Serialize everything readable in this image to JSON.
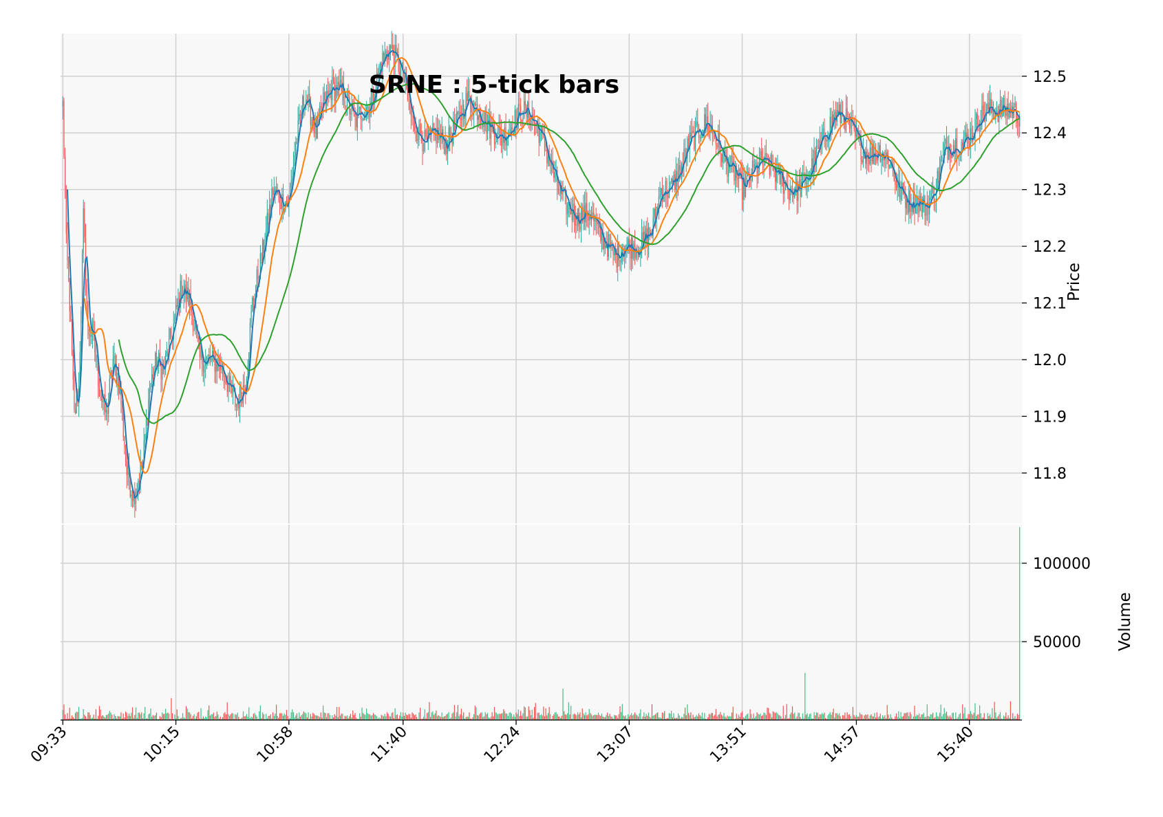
{
  "chart_data": {
    "type": "candlestick",
    "title": "SRNE : 5-tick bars",
    "price_panel": {
      "ylabel": "Price",
      "ylim": [
        11.71,
        12.575
      ],
      "yticks": [
        11.8,
        11.9,
        12.0,
        12.1,
        12.2,
        12.3,
        12.4,
        12.5
      ],
      "ytick_labels": [
        "11.8",
        "11.9",
        "12.0",
        "12.1",
        "12.2",
        "12.3",
        "12.4",
        "12.5"
      ]
    },
    "volume_panel": {
      "ylabel": "Volume",
      "ylim": [
        0,
        125000
      ],
      "yticks": [
        50000,
        100000
      ],
      "ytick_labels": [
        "50000",
        "100000"
      ]
    },
    "x_range": [
      -2,
      840
    ],
    "xtick_positions": [
      0,
      99,
      198,
      298,
      397,
      496,
      595,
      695,
      794
    ],
    "xtick_labels": [
      "09:33",
      "10:15",
      "10:58",
      "11:40",
      "12:24",
      "13:07",
      "13:51",
      "14:57",
      "15:40"
    ],
    "price_path": [
      [
        0,
        12.45
      ],
      [
        3,
        12.2
      ],
      [
        6,
        12.1
      ],
      [
        10,
        11.9
      ],
      [
        14,
        11.95
      ],
      [
        18,
        12.25
      ],
      [
        22,
        12.05
      ],
      [
        26,
        12.05
      ],
      [
        32,
        11.95
      ],
      [
        38,
        11.9
      ],
      [
        44,
        12.0
      ],
      [
        50,
        11.95
      ],
      [
        56,
        11.8
      ],
      [
        62,
        11.76
      ],
      [
        70,
        11.82
      ],
      [
        76,
        11.95
      ],
      [
        82,
        12.0
      ],
      [
        88,
        11.98
      ],
      [
        96,
        12.05
      ],
      [
        104,
        12.13
      ],
      [
        112,
        12.1
      ],
      [
        120,
        12.0
      ],
      [
        128,
        12.0
      ],
      [
        138,
        11.99
      ],
      [
        146,
        11.95
      ],
      [
        152,
        11.92
      ],
      [
        160,
        11.96
      ],
      [
        166,
        12.1
      ],
      [
        176,
        12.2
      ],
      [
        184,
        12.3
      ],
      [
        192,
        12.28
      ],
      [
        198,
        12.28
      ],
      [
        204,
        12.38
      ],
      [
        212,
        12.47
      ],
      [
        222,
        12.4
      ],
      [
        228,
        12.45
      ],
      [
        236,
        12.48
      ],
      [
        246,
        12.47
      ],
      [
        256,
        12.42
      ],
      [
        262,
        12.44
      ],
      [
        270,
        12.45
      ],
      [
        278,
        12.52
      ],
      [
        286,
        12.55
      ],
      [
        292,
        12.53
      ],
      [
        298,
        12.5
      ],
      [
        306,
        12.42
      ],
      [
        312,
        12.4
      ],
      [
        318,
        12.38
      ],
      [
        326,
        12.4
      ],
      [
        336,
        12.38
      ],
      [
        346,
        12.42
      ],
      [
        354,
        12.46
      ],
      [
        364,
        12.44
      ],
      [
        374,
        12.41
      ],
      [
        384,
        12.39
      ],
      [
        392,
        12.41
      ],
      [
        402,
        12.44
      ],
      [
        410,
        12.43
      ],
      [
        418,
        12.4
      ],
      [
        426,
        12.35
      ],
      [
        434,
        12.3
      ],
      [
        442,
        12.27
      ],
      [
        452,
        12.25
      ],
      [
        462,
        12.26
      ],
      [
        470,
        12.22
      ],
      [
        478,
        12.2
      ],
      [
        484,
        12.18
      ],
      [
        490,
        12.2
      ],
      [
        498,
        12.2
      ],
      [
        506,
        12.2
      ],
      [
        516,
        12.23
      ],
      [
        524,
        12.3
      ],
      [
        532,
        12.3
      ],
      [
        540,
        12.33
      ],
      [
        548,
        12.38
      ],
      [
        556,
        12.4
      ],
      [
        564,
        12.42
      ],
      [
        572,
        12.39
      ],
      [
        580,
        12.35
      ],
      [
        588,
        12.33
      ],
      [
        596,
        12.3
      ],
      [
        604,
        12.33
      ],
      [
        612,
        12.35
      ],
      [
        620,
        12.34
      ],
      [
        628,
        12.32
      ],
      [
        636,
        12.3
      ],
      [
        644,
        12.3
      ],
      [
        652,
        12.32
      ],
      [
        660,
        12.36
      ],
      [
        668,
        12.4
      ],
      [
        676,
        12.43
      ],
      [
        684,
        12.43
      ],
      [
        692,
        12.4
      ],
      [
        700,
        12.37
      ],
      [
        708,
        12.36
      ],
      [
        716,
        12.37
      ],
      [
        724,
        12.35
      ],
      [
        732,
        12.3
      ],
      [
        740,
        12.28
      ],
      [
        748,
        12.28
      ],
      [
        756,
        12.27
      ],
      [
        764,
        12.3
      ],
      [
        772,
        12.37
      ],
      [
        780,
        12.38
      ],
      [
        788,
        12.38
      ],
      [
        796,
        12.4
      ],
      [
        804,
        12.43
      ],
      [
        812,
        12.44
      ],
      [
        822,
        12.44
      ],
      [
        832,
        12.44
      ],
      [
        838,
        12.43
      ]
    ],
    "moving_averages": [
      {
        "window": 5,
        "color": "#1f77b4"
      },
      {
        "window": 20,
        "color": "#ff7f0e"
      },
      {
        "window": 50,
        "color": "#2ca02c"
      }
    ],
    "volume_spikes": [
      [
        95,
        14000
      ],
      [
        438,
        20000
      ],
      [
        650,
        30000
      ],
      [
        788,
        10000
      ],
      [
        830,
        12000
      ],
      [
        838,
        123000
      ]
    ]
  },
  "colors": {
    "up": "#26a69a",
    "up_volume": "#3dbf86",
    "down": "#ef5350",
    "panel_bg": "#f8f8f8",
    "grid": "#d0d0d0"
  }
}
